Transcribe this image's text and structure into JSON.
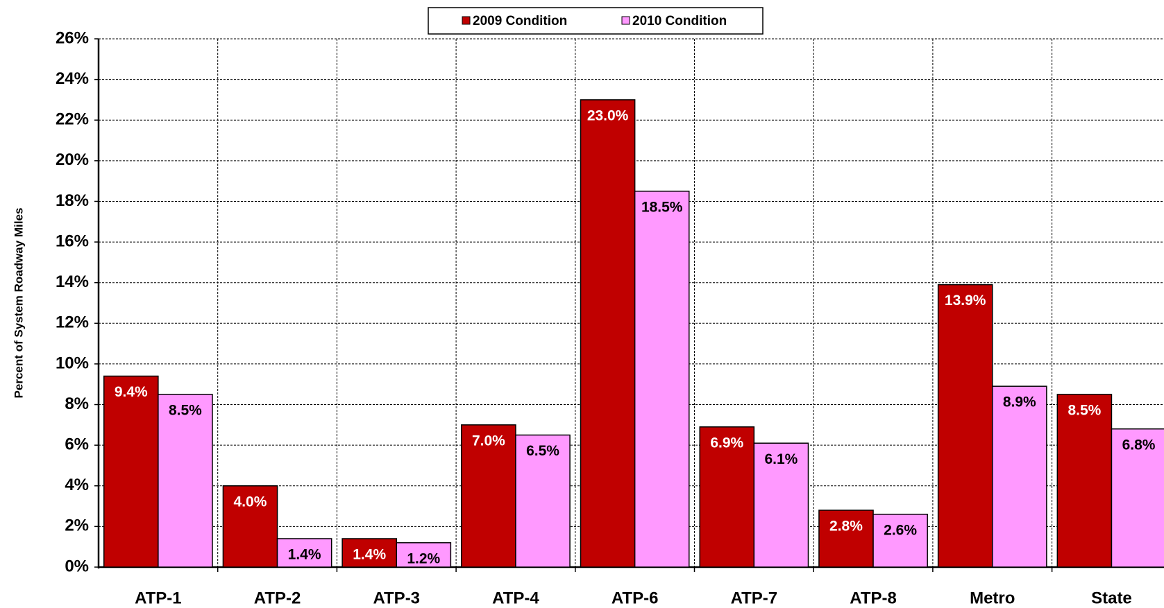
{
  "chart_data": {
    "type": "bar",
    "y_label": "Percent of System Roadway Miles",
    "categories": [
      "ATP-1",
      "ATP-2",
      "ATP-3",
      "ATP-4",
      "ATP-6",
      "ATP-7",
      "ATP-8",
      "Metro",
      "State"
    ],
    "series": [
      {
        "name": "2009 Condition",
        "color": "#c00000",
        "label_color": "#ffffff",
        "values": [
          9.4,
          4.0,
          1.4,
          7.0,
          23.0,
          6.9,
          2.8,
          13.9,
          8.5
        ],
        "value_labels": [
          "9.4%",
          "4.0%",
          "1.4%",
          "7.0%",
          "23.0%",
          "6.9%",
          "2.8%",
          "13.9%",
          "8.5%"
        ]
      },
      {
        "name": "2010 Condition",
        "color": "#ff99ff",
        "label_color": "#000000",
        "values": [
          8.5,
          1.4,
          1.2,
          6.5,
          18.5,
          6.1,
          2.6,
          8.9,
          6.8
        ],
        "value_labels": [
          "8.5%",
          "1.4%",
          "1.2%",
          "6.5%",
          "18.5%",
          "6.1%",
          "2.6%",
          "8.9%",
          "6.8%"
        ]
      }
    ],
    "ylim": [
      0,
      26
    ],
    "yticks": [
      {
        "value": 0,
        "label": "0%"
      },
      {
        "value": 2,
        "label": "2%"
      },
      {
        "value": 4,
        "label": "4%"
      },
      {
        "value": 6,
        "label": "6%"
      },
      {
        "value": 8,
        "label": "8%"
      },
      {
        "value": 10,
        "label": "10%"
      },
      {
        "value": 12,
        "label": "12%"
      },
      {
        "value": 14,
        "label": "14%"
      },
      {
        "value": 16,
        "label": "16%"
      },
      {
        "value": 18,
        "label": "18%"
      },
      {
        "value": 20,
        "label": "20%"
      },
      {
        "value": 22,
        "label": "22%"
      },
      {
        "value": 24,
        "label": "24%"
      },
      {
        "value": 26,
        "label": "26%"
      }
    ],
    "grid": true
  }
}
